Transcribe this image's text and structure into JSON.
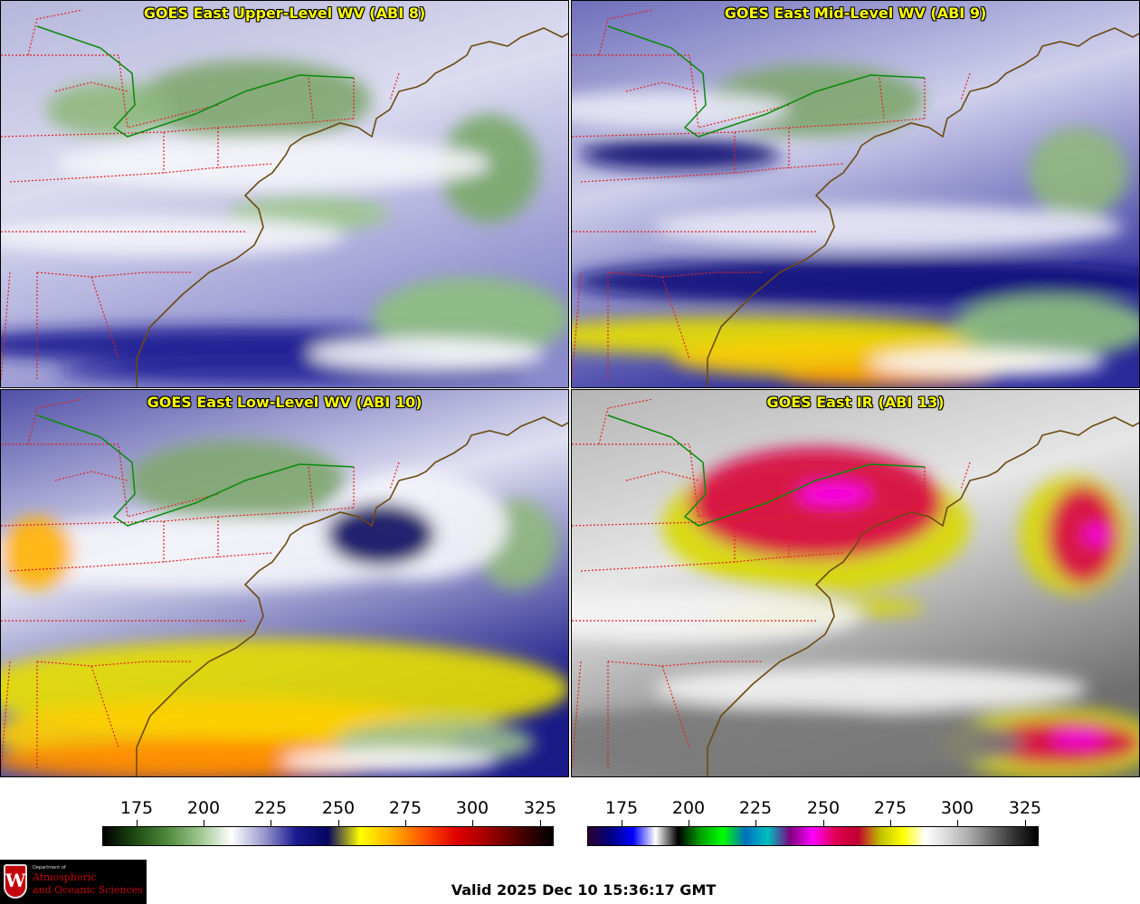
{
  "panels": [
    {
      "title": "GOES East Upper-Level WV (ABI 8)",
      "scheme": "wv_upper"
    },
    {
      "title": "GOES East Mid-Level WV (ABI 9)",
      "scheme": "wv_mid"
    },
    {
      "title": "GOES East Low-Level WV (ABI 10)",
      "scheme": "wv_low"
    },
    {
      "title": "GOES East IR (ABI 13)",
      "scheme": "ir"
    }
  ],
  "colorbars": [
    {
      "name": "water-vapor-colorbar",
      "ticks": [
        "175",
        "200",
        "225",
        "250",
        "275",
        "300",
        "325"
      ],
      "colors": [
        "#000000",
        "#1e4a12",
        "#4f8a3c",
        "#9cc58d",
        "#ffffff",
        "#9a9acf",
        "#1b1b90",
        "#050560",
        "#ffff00",
        "#ffb000",
        "#ff5000",
        "#e00000",
        "#a00000",
        "#4a0000",
        "#000000"
      ]
    },
    {
      "name": "infrared-colorbar",
      "ticks": [
        "175",
        "200",
        "225",
        "250",
        "275",
        "300",
        "325"
      ],
      "colors": [
        "#2a0030",
        "#000080",
        "#0000ff",
        "#ffffff",
        "#000000",
        "#00a000",
        "#00ff00",
        "#0070c0",
        "#00c0c0",
        "#800080",
        "#ff00ff",
        "#e00050",
        "#c00030",
        "#c0c000",
        "#ffff00",
        "#ffffff",
        "#d8d8d8",
        "#a8a8a8",
        "#6a6a6a",
        "#303030",
        "#000000"
      ]
    }
  ],
  "footer": {
    "valid_time": "Valid 2025 Dec 10 15:36:17 GMT"
  },
  "logo": {
    "dept": "Department of",
    "line1": "Atmospheric",
    "line2": "and Oceanic Sciences",
    "letter": "W"
  }
}
